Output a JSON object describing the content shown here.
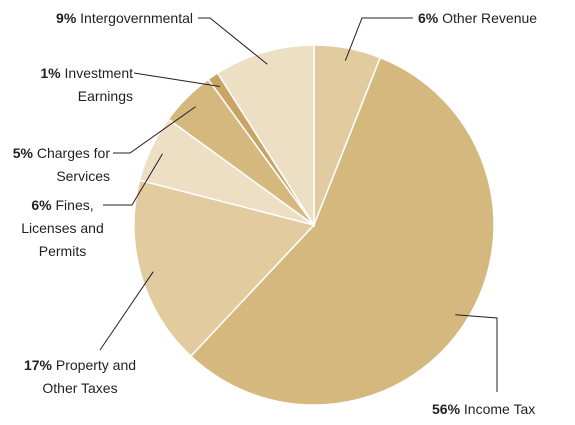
{
  "chart_data": {
    "type": "pie",
    "categories": [
      "Other Revenue",
      "Income Tax",
      "Property and Other Taxes",
      "Fines, Licenses and Permits",
      "Charges for Services",
      "Investment Earnings",
      "Intergovernmental"
    ],
    "values": [
      6,
      56,
      17,
      6,
      5,
      1,
      9
    ],
    "value_labels": [
      "6%",
      "56%",
      "17%",
      "6%",
      "5%",
      "1%",
      "9%"
    ],
    "colors": [
      "#e3cba0",
      "#d4b87e",
      "#e3cba0",
      "#ecdfc4",
      "#d4b87e",
      "#c9a565",
      "#ecdfc4"
    ]
  }
}
